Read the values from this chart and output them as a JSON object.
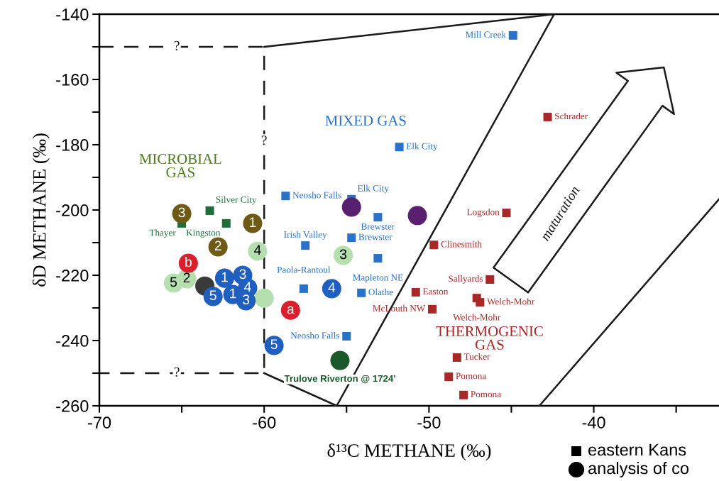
{
  "chart_data": {
    "type": "scatter",
    "xlabel": "δ¹³C METHANE (‰)",
    "ylabel": "δD METHANE (‰)",
    "xlim": [
      -70,
      -32.4
    ],
    "ylim": [
      -260,
      -140
    ],
    "xticks": [
      -70,
      {
        "value": -65,
        "label": null
      },
      -60,
      {
        "value": -55,
        "label": null
      },
      -50,
      {
        "value": -45,
        "label": null
      },
      -40,
      {
        "value": -35,
        "label": null
      }
    ],
    "yticks": [
      -140,
      {
        "value": -150,
        "label": null
      },
      -160,
      {
        "value": -170,
        "label": null
      },
      -180,
      {
        "value": -190,
        "label": null
      },
      -200,
      {
        "value": -210,
        "label": null
      },
      -220,
      {
        "value": -230,
        "label": null
      },
      -240,
      {
        "value": -250,
        "label": null
      },
      -260
    ],
    "series": [
      {
        "type": "line",
        "color": "#1a1a1a",
        "line_style": "dashed",
        "marker": "none",
        "x": [
          -70,
          -60,
          -60,
          -70
        ],
        "values": [
          -150,
          -150,
          -250,
          -250
        ]
      },
      {
        "type": "line",
        "color": "#1a1a1a",
        "line_style": "solid",
        "marker": "none",
        "x": [
          -60,
          -42.4,
          -55.6,
          -60
        ],
        "values": [
          -150,
          -140,
          -260,
          -250
        ]
      },
      {
        "type": "line",
        "color": "#1a1a1a",
        "line_style": "solid",
        "marker": "none",
        "x": [
          -43.3,
          -32.4
        ],
        "values": [
          -260,
          -196.7
        ]
      },
      {
        "marker": "square",
        "color": "#1f6e3a",
        "x": [
          -63.3,
          -62.3,
          -65.0
        ],
        "values": [
          -200.2,
          -204.1,
          -204.1
        ],
        "value_labels": [
          "Silver City",
          "Kingston",
          "Thayer"
        ]
      },
      {
        "marker": "square",
        "color": "#2a72c8",
        "x": [
          -44.9,
          -51.8,
          -58.7,
          -54.7,
          -53.1,
          -54.7,
          -53.1,
          -57.5,
          -57.6,
          -54.1,
          -55.0
        ],
        "values": [
          -146.5,
          -180.7,
          -195.7,
          -196.7,
          -202.2,
          -208.5,
          -214.8,
          -210.9,
          -224.1,
          -225.4,
          -238.7
        ],
        "value_labels": [
          "Mill Creek",
          "Elk City",
          "Neosho Falls",
          "Elk City",
          "Brewster",
          "Brewster",
          "Mapleton NE",
          "Irish Valley",
          "Paola-Rantoul",
          "Olathe",
          "Neosho Falls"
        ]
      },
      {
        "marker": "square",
        "color": "#a82828",
        "x": [
          -42.8,
          -45.3,
          -49.7,
          -46.3,
          -50.8,
          -47.1,
          -46.9,
          -49.8,
          -48.3,
          -48.8,
          -47.9
        ],
        "values": [
          -171.5,
          -200.9,
          -210.7,
          -221.3,
          -225.2,
          -227.0,
          -228.3,
          -230.4,
          -245.2,
          -251.1,
          -256.7
        ],
        "value_labels": [
          "Schrader",
          "Logsdon",
          "Clinesmith",
          "Sallyards",
          "Easton",
          "Welch-Mohr",
          "Welch-Mohr",
          "McLouth NW",
          "Tucker",
          "Pomona",
          "Pomona"
        ]
      },
      {
        "marker": "circle",
        "color": "#6e5a14",
        "x": [
          -65.0,
          -60.7,
          -62.8
        ],
        "values": [
          -201.1,
          -204.1,
          -211.3
        ]
      },
      {
        "marker": "circle",
        "color": "#b6dfb0",
        "x": [
          -60.4,
          -55.2,
          -65.5,
          -64.7,
          -60.0
        ],
        "values": [
          -212.6,
          -213.9,
          -222.4,
          -221.1,
          -227.0
        ]
      },
      {
        "marker": "circle",
        "color": "#d8202e",
        "x": [
          -64.6,
          -58.4
        ],
        "values": [
          -216.3,
          -230.7
        ]
      },
      {
        "marker": "circle",
        "color": "#5a2070",
        "x": [
          -54.7,
          -50.7
        ],
        "values": [
          -199.1,
          -201.7
        ]
      },
      {
        "marker": "circle",
        "color": "#3a3a3a",
        "x": [
          -63.6
        ],
        "values": [
          -223.3
        ]
      },
      {
        "marker": "circle",
        "color": "#1e5fc0",
        "x": [
          -62.4,
          -61.3,
          -63.1,
          -61.9,
          -61.0,
          -61.1,
          -55.9,
          -59.4
        ],
        "values": [
          -220.9,
          -220.0,
          -226.5,
          -225.9,
          -223.9,
          -227.8,
          -224.1,
          -241.5
        ]
      },
      {
        "marker": "circle",
        "color": "#1a5a2a",
        "x": [
          -55.4
        ],
        "values": [
          -246.1
        ]
      }
    ],
    "annotations": [
      "MICROBIAL\nGAS",
      "MIXED GAS",
      "THERMOGENIC\nGAS",
      "maturation",
      "eastern Kans",
      "analysis of co",
      {
        "text": "?",
        "x": -60.0,
        "y": -179.0
      },
      {
        "text": "?",
        "x": -65.3,
        "y": -150.0
      },
      {
        "text": "?",
        "x": -65.3,
        "y": -250.0
      },
      {
        "text": "3",
        "x": -65.0,
        "y": -201.1
      },
      {
        "text": "1",
        "x": -60.7,
        "y": -204.1
      },
      {
        "text": "2",
        "x": -62.8,
        "y": -211.3
      },
      {
        "text": "4",
        "x": -60.4,
        "y": -212.6
      },
      {
        "text": "3",
        "x": -55.2,
        "y": -213.9
      },
      {
        "text": "5",
        "x": -65.5,
        "y": -222.4
      },
      {
        "text": "2",
        "x": -64.7,
        "y": -221.1
      },
      {
        "text": "b",
        "x": -64.6,
        "y": -216.3
      },
      {
        "text": "a",
        "x": -58.4,
        "y": -230.7
      },
      {
        "text": "1",
        "x": -62.4,
        "y": -220.9
      },
      {
        "text": "3",
        "x": -61.3,
        "y": -220.0
      },
      {
        "text": "5",
        "x": -63.1,
        "y": -226.5
      },
      {
        "text": "1",
        "x": -61.9,
        "y": -225.9
      },
      {
        "text": "4",
        "x": -61.0,
        "y": -223.9
      },
      {
        "text": "3",
        "x": -61.1,
        "y": -227.8
      },
      {
        "text": "4",
        "x": -55.9,
        "y": -224.1
      },
      {
        "text": "5",
        "x": -59.4,
        "y": -241.5
      },
      {
        "text": "Trulove Riverton @ 1724'",
        "x": -55.4,
        "y": -246.1
      }
    ]
  }
}
